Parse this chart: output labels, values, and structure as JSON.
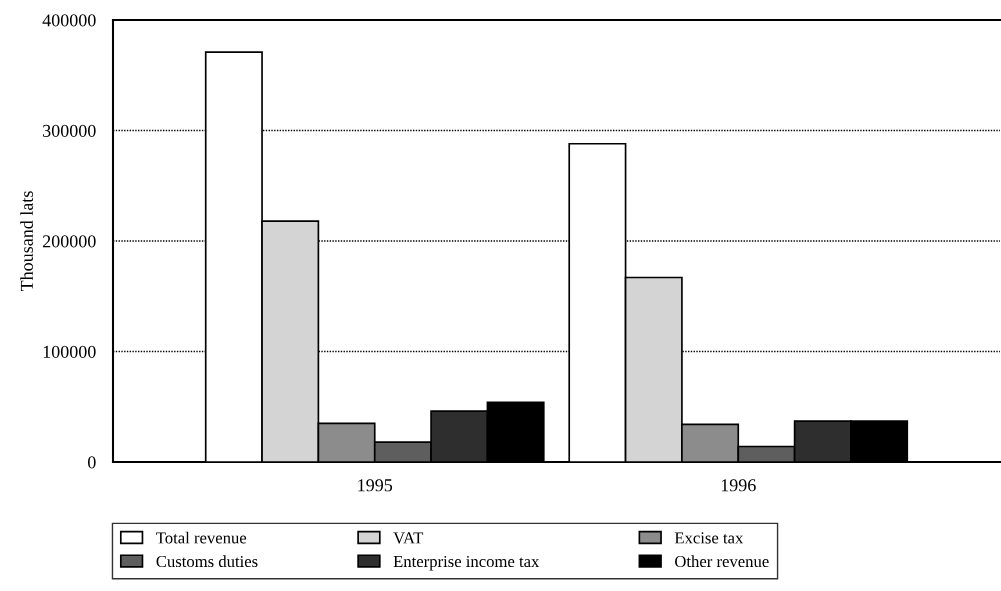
{
  "chart_data": {
    "type": "bar",
    "ylabel": "Thousand lats",
    "categories": [
      "1995",
      "1996"
    ],
    "series": [
      {
        "name": "Total revenue",
        "color": "#ffffff",
        "values": [
          371000,
          288000
        ]
      },
      {
        "name": "VAT",
        "color": "#d4d4d4",
        "values": [
          218000,
          167000
        ]
      },
      {
        "name": "Excise tax",
        "color": "#8c8c8c",
        "values": [
          35000,
          34000
        ]
      },
      {
        "name": "Customs duties",
        "color": "#5e5e5e",
        "values": [
          18000,
          14000
        ]
      },
      {
        "name": "Enterprise income tax",
        "color": "#2e2e2e",
        "values": [
          46000,
          37000
        ]
      },
      {
        "name": "Other revenue",
        "color": "#000000",
        "values": [
          54000,
          37000
        ]
      }
    ],
    "ylim": [
      0,
      400000
    ],
    "yticks": [
      0,
      100000,
      200000,
      300000,
      400000
    ],
    "grid": "y",
    "legend": "bottom"
  }
}
